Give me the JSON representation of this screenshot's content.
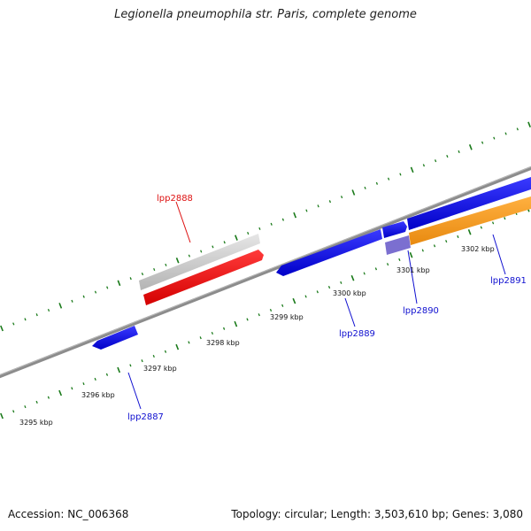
{
  "title": "Legionella pneumophila str. Paris, complete genome",
  "footer": {
    "accession": "Accession: NC_006368",
    "stats": "Topology: circular; Length: 3,503,610 bp; Genes: 3,080"
  },
  "colors": {
    "backbone": "#888888",
    "tick_dots": "#1a7a1a",
    "gene_forward": "#1010e0",
    "gene_highlight": "#ee1111",
    "gene_grey": "#c8c8c8",
    "gene_orange": "#f59a1e",
    "gene_purple": "#7b6fd0",
    "label_blue": "#1010d0",
    "label_red": "#dd1111"
  },
  "ticks": [
    "3295 kbp",
    "3296 kbp",
    "3297 kbp",
    "3298 kbp",
    "3299 kbp",
    "3300 kbp",
    "3301 kbp",
    "3302 kbp"
  ],
  "genes": [
    {
      "name": "lpp2887",
      "color": "blue"
    },
    {
      "name": "lpp2888",
      "color": "red"
    },
    {
      "name": "lpp2889",
      "color": "blue"
    },
    {
      "name": "lpp2890",
      "color": "blue"
    },
    {
      "name": "lpp2891",
      "color": "blue"
    }
  ]
}
